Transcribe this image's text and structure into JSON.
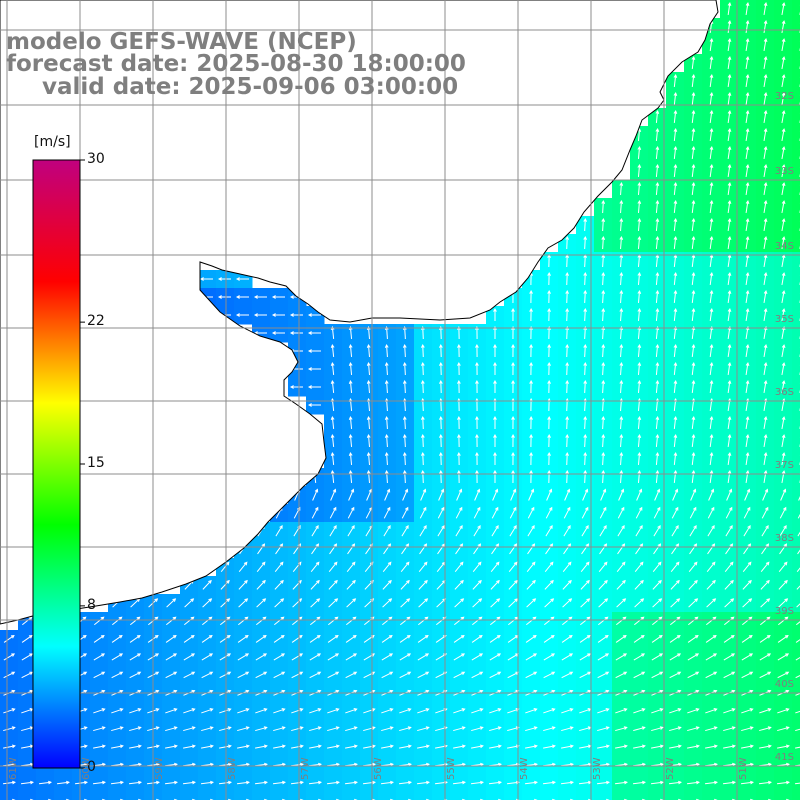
{
  "title": {
    "line1": "modelo GEFS-WAVE (NCEP)",
    "line2": "forecast date: 2025-08-30 18:00:00",
    "line3": "valid date: 2025-09-06 03:00:00"
  },
  "colorbar": {
    "unit": "[m/s]",
    "ticks": [
      "30",
      "22",
      "15",
      "8",
      "0"
    ],
    "tick_values": [
      30,
      22,
      15,
      8,
      0
    ],
    "range": [
      0,
      30
    ],
    "colors": [
      "#0000ff",
      "#00ffff",
      "#00ff00",
      "#ffff00",
      "#ff0000",
      "#c0007f"
    ]
  },
  "lat_labels": [
    "32S",
    "33S",
    "34S",
    "35S",
    "36S",
    "37S",
    "38S",
    "39S",
    "40S",
    "41S"
  ],
  "lon_labels": [
    "61W",
    "60W",
    "59W",
    "58W",
    "57W",
    "56W",
    "55W",
    "54W",
    "53W",
    "52W",
    "51W"
  ],
  "map_colors": {
    "land": "#ffffff",
    "coast": "#000000",
    "grid": "#8c8c8c",
    "arrow": "#ffffff"
  }
}
